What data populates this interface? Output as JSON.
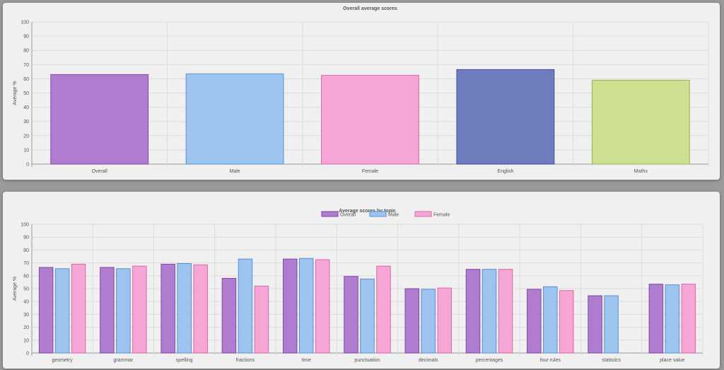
{
  "colors": {
    "purple": {
      "fill": "#b07ccf",
      "stroke": "#7e49a6"
    },
    "lightblue": {
      "fill": "#9cc4ef",
      "stroke": "#5d8fd0"
    },
    "pink": {
      "fill": "#f5a6d5",
      "stroke": "#d86aa8"
    },
    "navy": {
      "fill": "#6f7cbd",
      "stroke": "#3f4c96"
    },
    "lime": {
      "fill": "#cce08f",
      "stroke": "#9cb35a"
    },
    "grid": "#dcdcdc",
    "axis": "#9a9a9a"
  },
  "chart_data": [
    {
      "type": "bar",
      "title": "Overall average scores",
      "ylabel": "Average %",
      "xlabel": "",
      "ylim": [
        0,
        100
      ],
      "yticks": [
        0,
        10,
        20,
        30,
        40,
        50,
        60,
        70,
        80,
        90,
        100
      ],
      "grid": true,
      "categories": [
        "Overall",
        "Male",
        "Female",
        "English",
        "Maths"
      ],
      "values": [
        63,
        63.5,
        62.5,
        66.5,
        59
      ],
      "bar_colors": [
        "purple",
        "lightblue",
        "pink",
        "navy",
        "lime"
      ]
    },
    {
      "type": "bar",
      "title": "Average scores by topic",
      "ylabel": "Average %",
      "xlabel": "",
      "ylim": [
        0,
        100
      ],
      "yticks": [
        0,
        10,
        20,
        30,
        40,
        50,
        60,
        70,
        80,
        90,
        100
      ],
      "grid": true,
      "legend_position": "top",
      "categories": [
        "geometry",
        "grammar",
        "spelling",
        "fractions",
        "time",
        "punctuation",
        "decimals",
        "percentages",
        "four rules",
        "statistics",
        "place value"
      ],
      "series": [
        {
          "name": "Overall",
          "color": "purple",
          "values": [
            66.5,
            66.5,
            69,
            58,
            73,
            59.5,
            50,
            65,
            49.5,
            44.5,
            53.5
          ]
        },
        {
          "name": "Male",
          "color": "lightblue",
          "values": [
            65.5,
            65.5,
            69.5,
            73,
            73.5,
            57.5,
            49.5,
            65,
            51.5,
            44.5,
            53
          ]
        },
        {
          "name": "Female",
          "color": "pink",
          "values": [
            69,
            67.5,
            68.5,
            52,
            72.5,
            67.5,
            50.5,
            65,
            48.5,
            null,
            53.5
          ]
        }
      ]
    }
  ]
}
